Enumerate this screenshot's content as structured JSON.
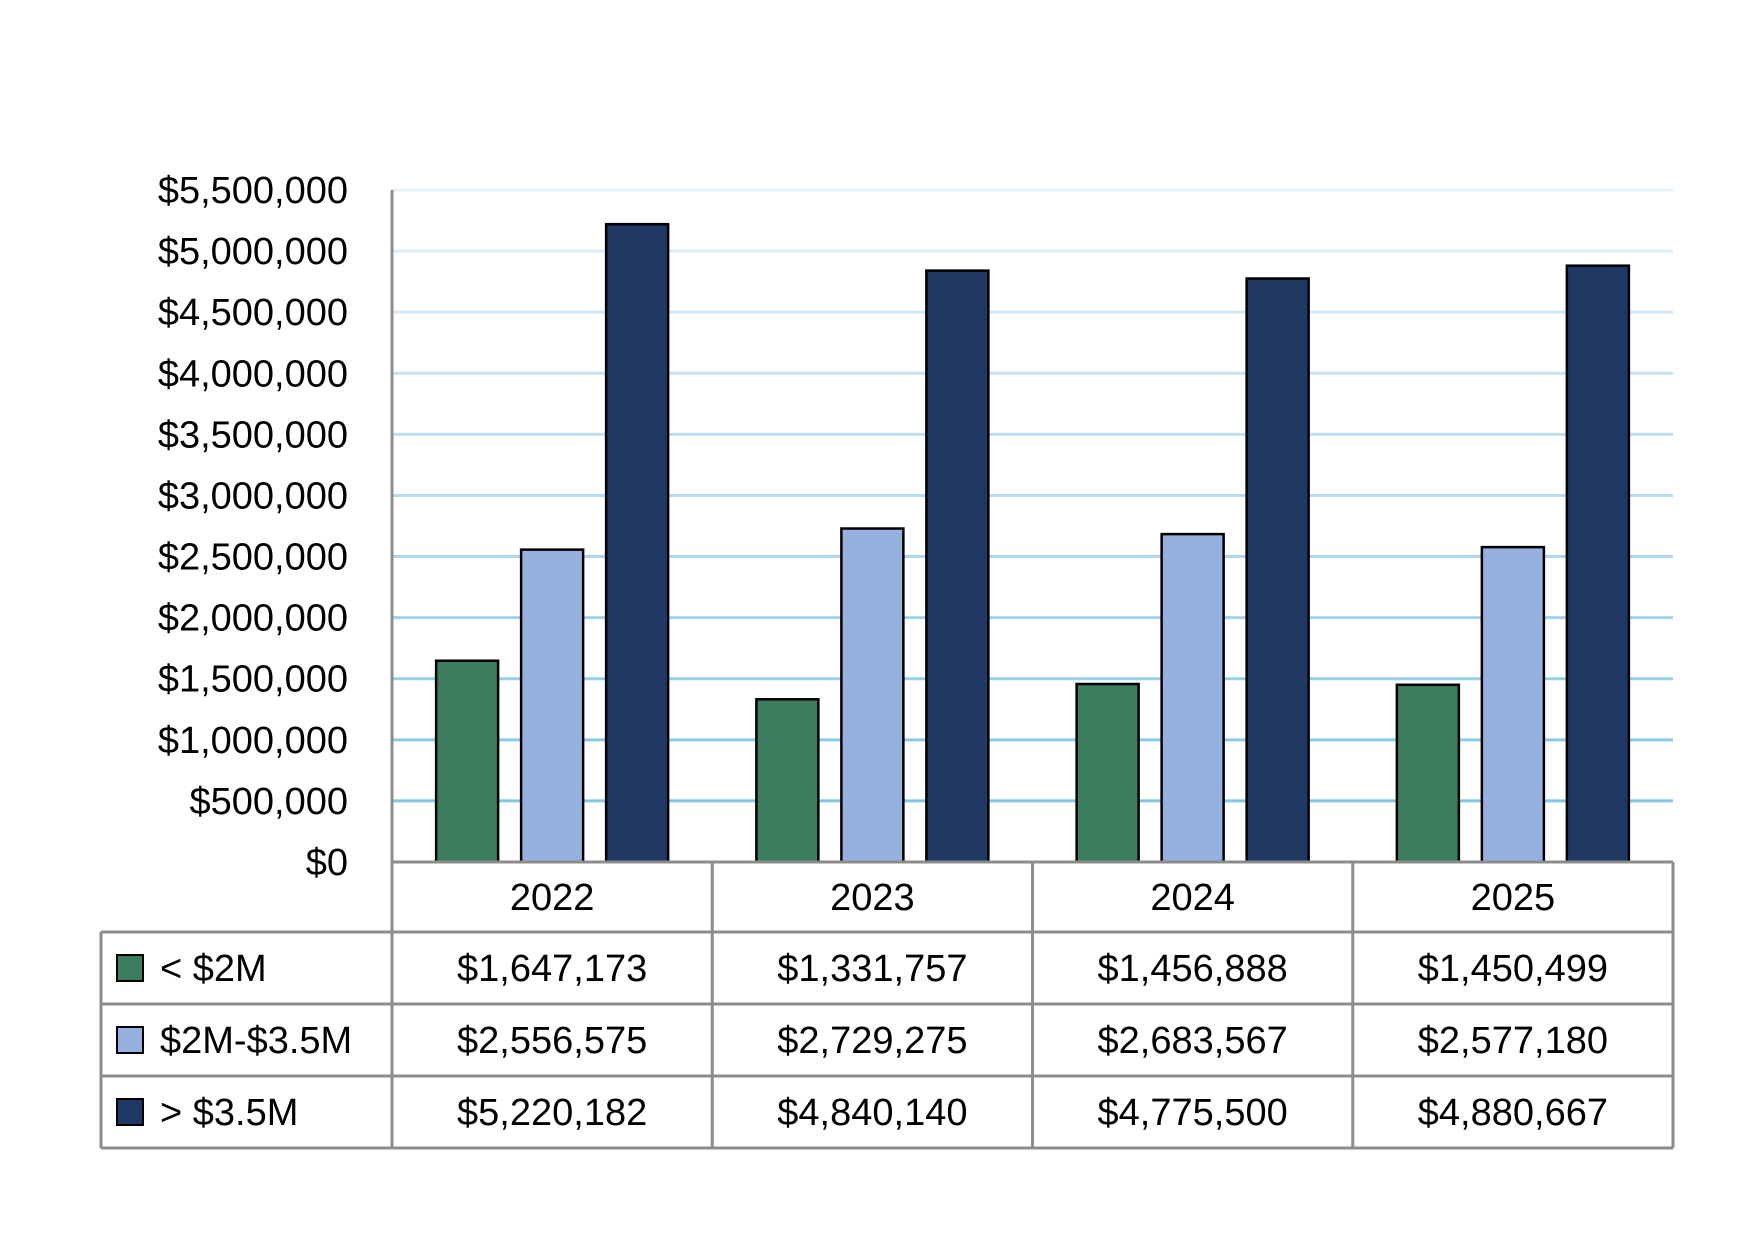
{
  "chart_data": {
    "type": "bar",
    "categories": [
      "2022",
      "2023",
      "2024",
      "2025"
    ],
    "series": [
      {
        "name": "< $2M",
        "color": "#3b7d5e",
        "values": [
          1647173,
          1331757,
          1456888,
          1450499
        ],
        "labels": [
          "$1,647,173",
          "$1,331,757",
          "$1,456,888",
          "$1,450,499"
        ]
      },
      {
        "name": "$2M-$3.5M",
        "color": "#96b1df",
        "values": [
          2556575,
          2729275,
          2683567,
          2577180
        ],
        "labels": [
          "$2,556,575",
          "$2,729,275",
          "$2,683,567",
          "$2,577,180"
        ]
      },
      {
        "name": "> $3.5M",
        "color": "#203864",
        "values": [
          5220182,
          4840140,
          4775500,
          4880667
        ],
        "labels": [
          "$5,220,182",
          "$4,840,140",
          "$4,775,500",
          "$4,880,667"
        ]
      }
    ],
    "y_ticks": [
      "$0",
      "$500,000",
      "$1,000,000",
      "$1,500,000",
      "$2,000,000",
      "$2,500,000",
      "$3,000,000",
      "$3,500,000",
      "$4,000,000",
      "$4,500,000",
      "$5,000,000",
      "$5,500,000"
    ],
    "ylim": [
      0,
      5500000
    ],
    "grid": true,
    "legend": "data-table",
    "title": "",
    "xlabel": "",
    "ylabel": ""
  }
}
